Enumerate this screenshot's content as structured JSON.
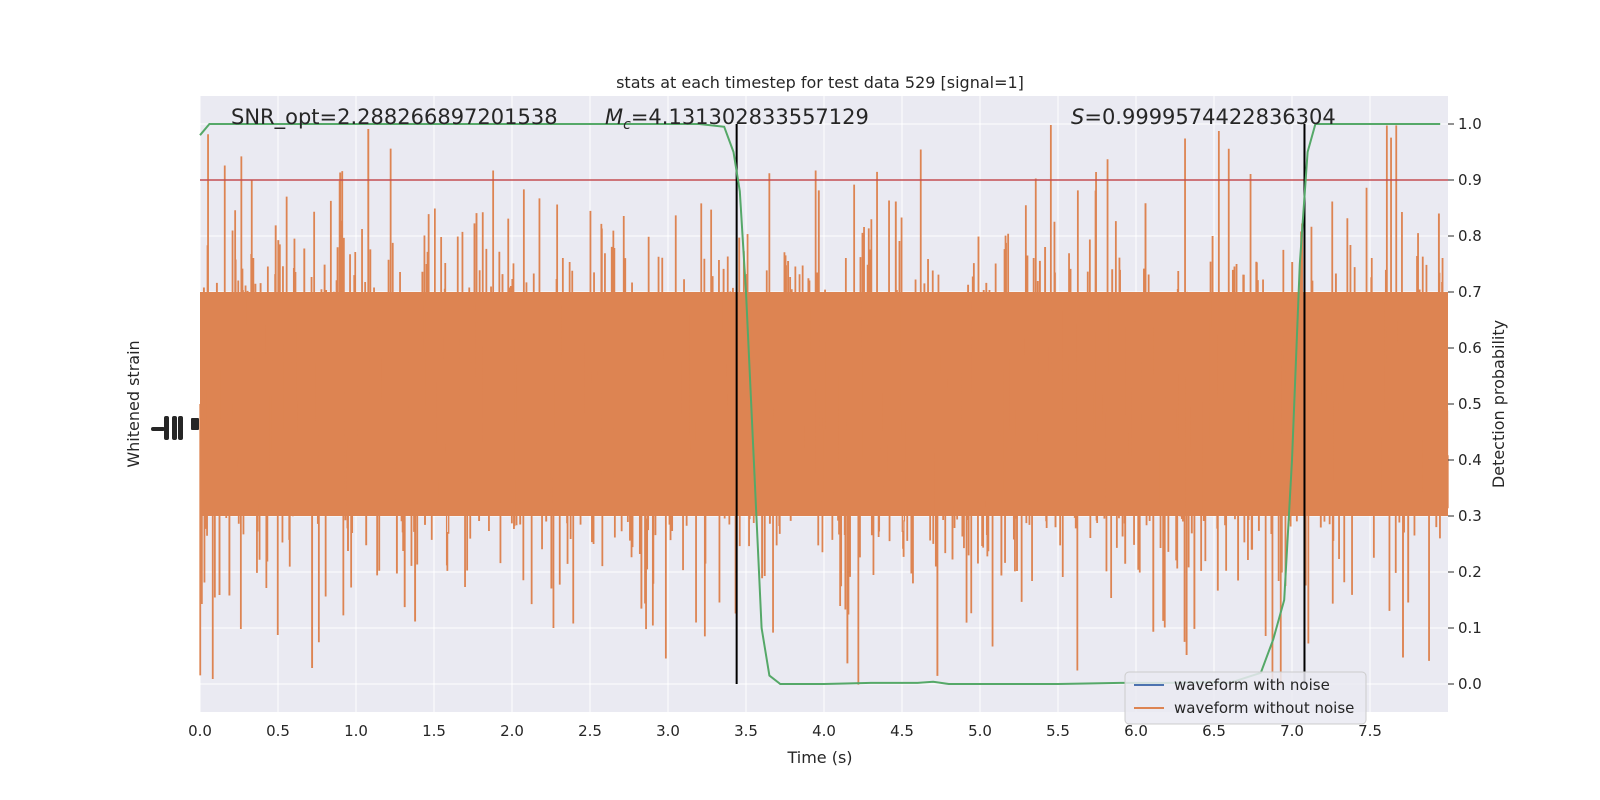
{
  "chart_data": {
    "type": "line",
    "title": "stats at each timestep for test data 529 [signal=1]",
    "xlabel": "Time (s)",
    "ylabel_left": "Whitened strain",
    "ylabel_right": "Detection probability",
    "xlim": [
      0.0,
      8.0
    ],
    "ylim_right": [
      -0.05,
      1.05
    ],
    "x_ticks": [
      "0.0",
      "0.5",
      "1.0",
      "1.5",
      "2.0",
      "2.5",
      "3.0",
      "3.5",
      "4.0",
      "4.5",
      "5.0",
      "5.5",
      "6.0",
      "6.5",
      "7.0",
      "7.5"
    ],
    "y_ticks_right": [
      "0.0",
      "0.1",
      "0.2",
      "0.3",
      "0.4",
      "0.5",
      "0.6",
      "0.7",
      "0.8",
      "0.9",
      "1.0"
    ],
    "annotations": {
      "snr_label": "SNR_opt=2.288266897201538",
      "mc_symbol": "M",
      "mc_subscript": "c",
      "mc_value": "=4.131302833557129",
      "s_symbol": "S",
      "s_value": "=0.9999574422836304"
    },
    "legend": {
      "position": "lower right",
      "entries": [
        {
          "label": "waveform with noise",
          "color": "#4c72b0"
        },
        {
          "label": "waveform without noise",
          "color": "#dd8452"
        }
      ]
    },
    "threshold": 0.9,
    "signal_window": [
      3.44,
      7.08
    ],
    "series": [
      {
        "name": "waveform without noise",
        "color": "#dd8452",
        "kind": "noise-band",
        "center": 0.5,
        "typical_range": [
          0.3,
          0.7
        ],
        "extreme_range": [
          0.0,
          1.0
        ]
      },
      {
        "name": "detection probability",
        "color": "#55a868",
        "x": [
          0.0,
          0.06,
          0.5,
          1.0,
          1.5,
          2.0,
          2.5,
          3.0,
          3.2,
          3.36,
          3.42,
          3.46,
          3.5,
          3.55,
          3.6,
          3.65,
          3.72,
          3.8,
          4.0,
          4.3,
          4.6,
          4.7,
          4.8,
          5.0,
          5.5,
          5.9,
          6.2,
          6.5,
          6.6,
          6.8,
          6.88,
          6.95,
          7.0,
          7.05,
          7.1,
          7.15,
          7.5,
          7.95
        ],
        "values": [
          0.98,
          1.0,
          1.0,
          1.0,
          1.0,
          1.0,
          1.0,
          1.0,
          1.0,
          0.995,
          0.95,
          0.88,
          0.7,
          0.4,
          0.1,
          0.015,
          0.0,
          0.0,
          0.0,
          0.002,
          0.002,
          0.004,
          0.0,
          0.0,
          0.0,
          0.002,
          0.002,
          0.003,
          0.002,
          0.02,
          0.08,
          0.15,
          0.4,
          0.75,
          0.95,
          1.0,
          1.0,
          1.0
        ]
      }
    ],
    "colors": {
      "plot_bg": "#eaeaf2",
      "grid": "#ffffff",
      "threshold_line": "#c44e52",
      "window_line": "#000000"
    }
  }
}
